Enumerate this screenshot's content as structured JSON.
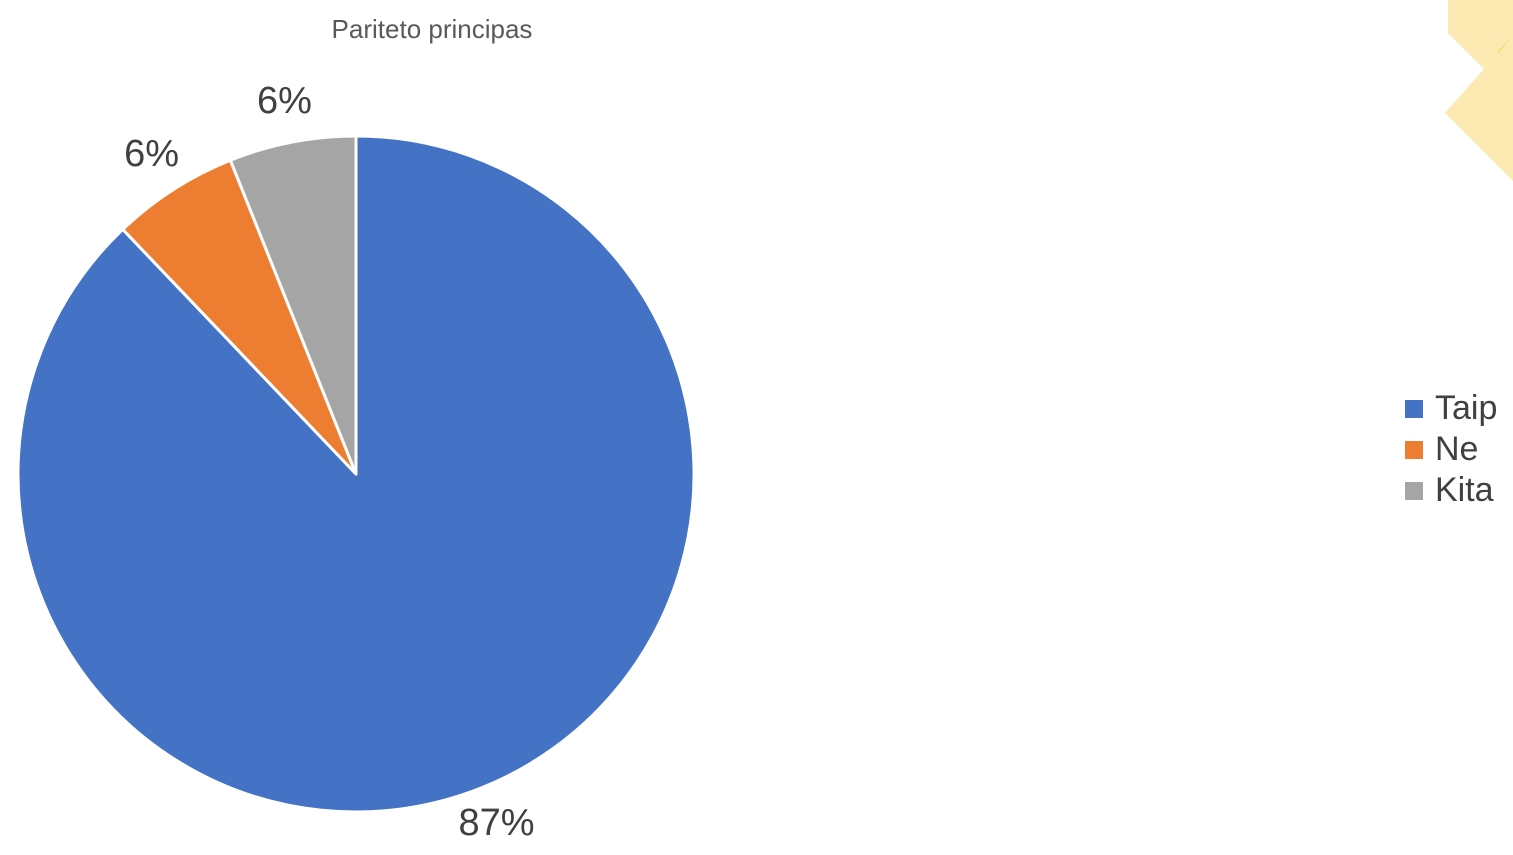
{
  "chart_data": {
    "type": "pie",
    "title": "Pariteto principas",
    "categories": [
      "Taip",
      "Ne",
      "Kita"
    ],
    "values": [
      87,
      6,
      6
    ],
    "value_labels": [
      "87%",
      "6%",
      "6%"
    ],
    "colors": [
      "#4472C4",
      "#ED7D31",
      "#A5A5A5"
    ],
    "legend_position": "right",
    "start_angle": "12 o'clock",
    "direction": "clockwise"
  },
  "decoration": {
    "colors": [
      "#FDE9B2",
      "#FAD55C"
    ]
  }
}
